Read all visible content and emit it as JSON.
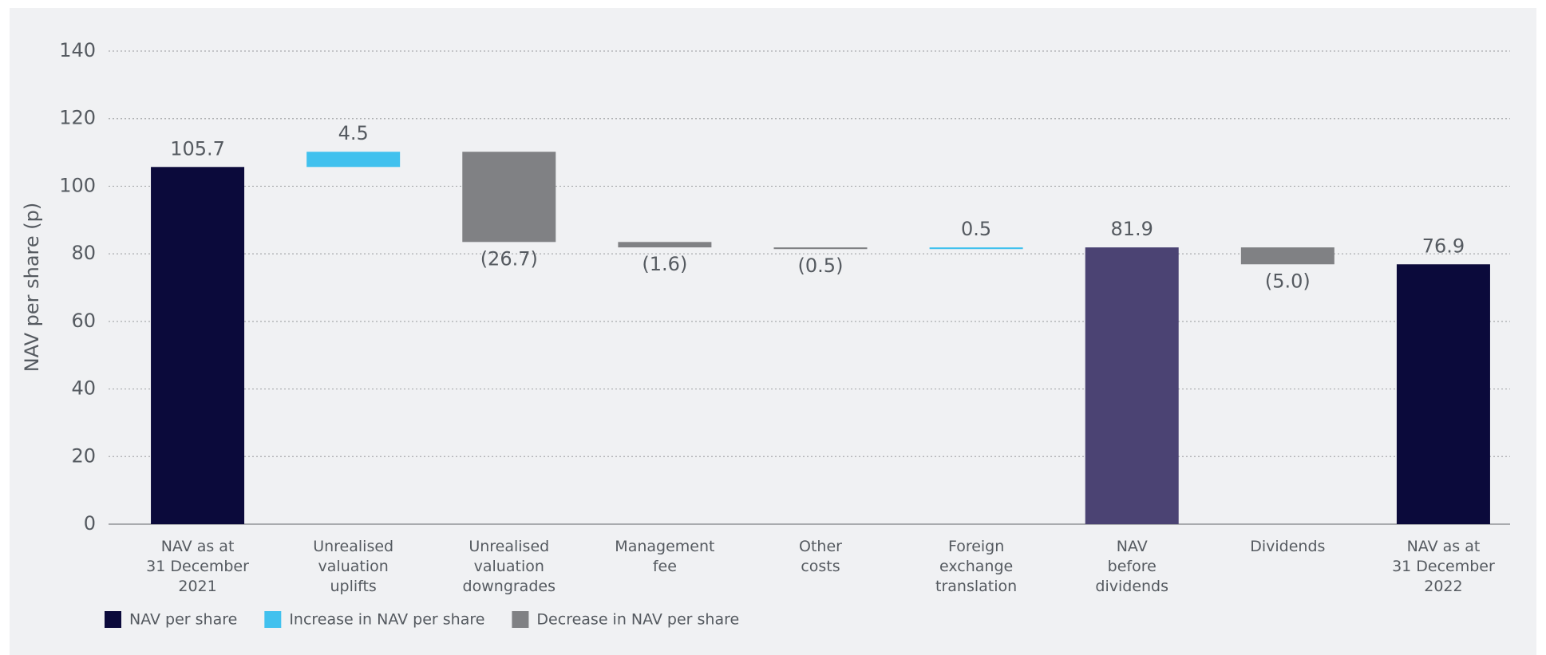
{
  "chart_data": {
    "type": "waterfall",
    "y_label": "NAV per share (p)",
    "categories": [
      [
        "NAV as at",
        "31 December",
        "2021"
      ],
      [
        "Unrealised",
        "valuation",
        "uplifts"
      ],
      [
        "Unrealised",
        "valuation",
        "downgrades"
      ],
      [
        "Management",
        "fee"
      ],
      [
        "Other",
        "costs"
      ],
      [
        "Foreign",
        "exchange",
        "translation"
      ],
      [
        "NAV",
        "before",
        "dividends"
      ],
      [
        "Dividends"
      ],
      [
        "NAV as at",
        "31 December",
        "2022"
      ]
    ],
    "measure": [
      "absolute",
      "relative",
      "relative",
      "relative",
      "relative",
      "relative",
      "absolute",
      "relative",
      "absolute"
    ],
    "values": [
      105.7,
      4.5,
      -26.7,
      -1.6,
      -0.5,
      0.5,
      81.9,
      -5.0,
      76.9
    ],
    "value_labels": [
      "105.7",
      "4.5",
      "(26.7)",
      "(1.6)",
      "(0.5)",
      "0.5",
      "81.9",
      "(5.0)",
      "76.9"
    ],
    "colors": [
      "#0b0a3b",
      "#41c1ee",
      "#808184",
      "#808184",
      "#808184",
      "#41c1ee",
      "#4b4373",
      "#808184",
      "#0b0a3b"
    ],
    "legend": [
      {
        "name": "NAV per share",
        "color": "#0b0a3b"
      },
      {
        "name": "Increase in NAV per share",
        "color": "#41c1ee"
      },
      {
        "name": "Decrease in NAV per share",
        "color": "#808184"
      }
    ],
    "ylim": [
      0,
      140
    ],
    "yticks": [
      0,
      20,
      40,
      60,
      80,
      100,
      120,
      140
    ],
    "grid": true
  }
}
